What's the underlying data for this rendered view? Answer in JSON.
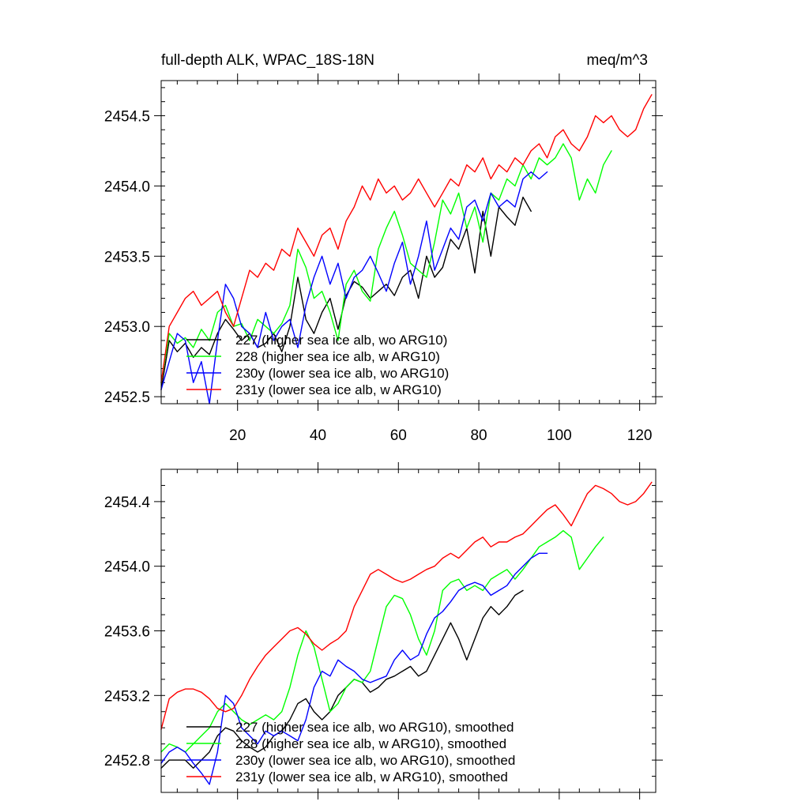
{
  "chart_data": [
    {
      "type": "line",
      "title": "full-depth ALK, WPAC_18S-18N",
      "units": "meq/m^3",
      "xlim": [
        1,
        124
      ],
      "ylim": [
        2452.45,
        2454.75
      ],
      "xticks": [
        20,
        40,
        60,
        80,
        100,
        120
      ],
      "yticks": [
        2452.5,
        2453.0,
        2453.5,
        2454.0,
        2454.5
      ],
      "yminor": 0.1,
      "show_x_tick_labels": true,
      "grid": false,
      "legend": "bottom-left",
      "series": [
        {
          "name": "227 (higher sea ice alb, wo ARG10)",
          "color": "#000000",
          "x": [
            1,
            3,
            5,
            7,
            9,
            11,
            13,
            15,
            17,
            19,
            21,
            23,
            25,
            27,
            29,
            31,
            33,
            35,
            37,
            39,
            41,
            43,
            45,
            47,
            49,
            51,
            53,
            55,
            57,
            59,
            61,
            63,
            65,
            67,
            69,
            71,
            73,
            75,
            77,
            79,
            81,
            83,
            85,
            87,
            89,
            91,
            93
          ],
          "y": [
            2452.55,
            2452.9,
            2452.82,
            2452.88,
            2452.78,
            2452.85,
            2452.8,
            2452.95,
            2453.05,
            2452.98,
            2452.9,
            2452.95,
            2452.85,
            2452.88,
            2452.95,
            2452.82,
            2453.0,
            2453.35,
            2453.05,
            2452.95,
            2453.1,
            2453.2,
            2452.98,
            2453.22,
            2453.32,
            2453.28,
            2453.2,
            2453.25,
            2453.3,
            2453.22,
            2453.35,
            2453.4,
            2453.2,
            2453.5,
            2453.35,
            2453.42,
            2453.62,
            2453.55,
            2453.7,
            2453.38,
            2453.82,
            2453.5,
            2453.85,
            2453.78,
            2453.72,
            2453.92,
            2453.82
          ]
        },
        {
          "name": "228 (higher sea ice alb, w ARG10)",
          "color": "#00ff00",
          "x": [
            1,
            3,
            5,
            7,
            9,
            11,
            13,
            15,
            17,
            19,
            21,
            23,
            25,
            27,
            29,
            31,
            33,
            35,
            37,
            39,
            41,
            43,
            45,
            47,
            49,
            51,
            53,
            55,
            57,
            59,
            61,
            63,
            65,
            67,
            69,
            71,
            73,
            75,
            77,
            79,
            81,
            83,
            85,
            87,
            89,
            91,
            93,
            95,
            97,
            99,
            101,
            103,
            105,
            107,
            109,
            111,
            113
          ],
          "y": [
            2452.6,
            2452.95,
            2452.88,
            2452.92,
            2452.85,
            2452.98,
            2452.9,
            2453.1,
            2453.15,
            2453.0,
            2453.02,
            2452.9,
            2453.05,
            2453.0,
            2452.95,
            2453.02,
            2453.15,
            2453.55,
            2453.42,
            2453.2,
            2453.25,
            2453.1,
            2452.9,
            2453.3,
            2453.4,
            2453.25,
            2453.18,
            2453.55,
            2453.7,
            2453.82,
            2453.65,
            2453.45,
            2453.4,
            2453.35,
            2453.6,
            2453.9,
            2453.8,
            2453.95,
            2453.7,
            2453.85,
            2453.6,
            2453.95,
            2453.9,
            2454.05,
            2454.0,
            2454.15,
            2454.05,
            2454.2,
            2454.15,
            2454.2,
            2454.3,
            2454.2,
            2453.9,
            2454.05,
            2453.95,
            2454.15,
            2454.25
          ]
        },
        {
          "name": "230y (lower sea ice alb, wo ARG10)",
          "color": "#0000ff",
          "x": [
            1,
            3,
            5,
            7,
            9,
            11,
            13,
            15,
            17,
            19,
            21,
            23,
            25,
            27,
            29,
            31,
            33,
            35,
            37,
            39,
            41,
            43,
            45,
            47,
            49,
            51,
            53,
            55,
            57,
            59,
            61,
            63,
            65,
            67,
            69,
            71,
            73,
            75,
            77,
            79,
            81,
            83,
            85,
            87,
            89,
            91,
            93,
            95,
            97
          ],
          "y": [
            2452.55,
            2452.75,
            2452.95,
            2452.9,
            2452.6,
            2452.75,
            2452.45,
            2452.9,
            2453.3,
            2453.2,
            2453.0,
            2452.95,
            2452.85,
            2453.1,
            2452.9,
            2453.0,
            2453.05,
            2452.85,
            2453.15,
            2453.35,
            2453.5,
            2453.3,
            2453.45,
            2453.2,
            2453.35,
            2453.4,
            2453.5,
            2453.38,
            2453.25,
            2453.45,
            2453.6,
            2453.3,
            2453.5,
            2453.75,
            2453.4,
            2453.55,
            2453.7,
            2453.62,
            2453.85,
            2453.9,
            2453.75,
            2453.95,
            2453.85,
            2453.9,
            2453.85,
            2454.05,
            2454.1,
            2454.05,
            2454.1
          ]
        },
        {
          "name": "231y (lower sea ice alb, w ARG10)",
          "color": "#ff0000",
          "x": [
            1,
            3,
            5,
            7,
            9,
            11,
            13,
            15,
            17,
            19,
            21,
            23,
            25,
            27,
            29,
            31,
            33,
            35,
            37,
            39,
            41,
            43,
            45,
            47,
            49,
            51,
            53,
            55,
            57,
            59,
            61,
            63,
            65,
            67,
            69,
            71,
            73,
            75,
            77,
            79,
            81,
            83,
            85,
            87,
            89,
            91,
            93,
            95,
            97,
            99,
            101,
            103,
            105,
            107,
            109,
            111,
            113,
            115,
            117,
            119,
            121,
            123
          ],
          "y": [
            2452.6,
            2453.0,
            2453.1,
            2453.2,
            2453.25,
            2453.15,
            2453.2,
            2453.25,
            2453.1,
            2453.0,
            2453.2,
            2453.4,
            2453.35,
            2453.45,
            2453.4,
            2453.55,
            2453.5,
            2453.7,
            2453.6,
            2453.5,
            2453.65,
            2453.7,
            2453.55,
            2453.75,
            2453.85,
            2454.0,
            2453.9,
            2454.05,
            2453.95,
            2454.0,
            2453.9,
            2453.95,
            2454.05,
            2453.95,
            2453.85,
            2453.95,
            2454.05,
            2454.0,
            2454.15,
            2454.1,
            2454.2,
            2454.05,
            2454.15,
            2454.1,
            2454.2,
            2454.15,
            2454.25,
            2454.3,
            2454.2,
            2454.35,
            2454.4,
            2454.3,
            2454.25,
            2454.35,
            2454.5,
            2454.45,
            2454.5,
            2454.4,
            2454.35,
            2454.4,
            2454.55,
            2454.65
          ]
        }
      ]
    },
    {
      "type": "line",
      "title": "",
      "units": "",
      "xlim": [
        1,
        124
      ],
      "ylim": [
        2452.6,
        2454.6
      ],
      "xticks": [
        20,
        40,
        60,
        80,
        100,
        120
      ],
      "yticks": [
        2452.8,
        2453.2,
        2453.6,
        2454.0,
        2454.4
      ],
      "yminor": 0.1,
      "show_x_tick_labels": false,
      "grid": false,
      "legend": "bottom-left",
      "series": [
        {
          "name": "227 (higher sea ice alb, wo ARG10), smoothed",
          "color": "#000000",
          "x": [
            1,
            3,
            5,
            7,
            9,
            11,
            13,
            15,
            17,
            19,
            21,
            23,
            25,
            27,
            29,
            31,
            33,
            35,
            37,
            39,
            41,
            43,
            45,
            47,
            49,
            51,
            53,
            55,
            57,
            59,
            61,
            63,
            65,
            67,
            69,
            71,
            73,
            75,
            77,
            79,
            81,
            83,
            85,
            87,
            89,
            91
          ],
          "y": [
            2452.75,
            2452.8,
            2452.8,
            2452.8,
            2452.75,
            2452.8,
            2452.85,
            2452.95,
            2453.0,
            2452.98,
            2452.92,
            2452.88,
            2452.85,
            2452.88,
            2452.95,
            2452.98,
            2453.05,
            2453.15,
            2453.18,
            2453.1,
            2453.05,
            2453.1,
            2453.2,
            2453.25,
            2453.3,
            2453.28,
            2453.22,
            2453.25,
            2453.3,
            2453.32,
            2453.35,
            2453.38,
            2453.32,
            2453.35,
            2453.45,
            2453.55,
            2453.65,
            2453.55,
            2453.42,
            2453.55,
            2453.68,
            2453.75,
            2453.7,
            2453.75,
            2453.82,
            2453.85
          ]
        },
        {
          "name": "228 (higher sea ice alb, w ARG10), smoothed",
          "color": "#00ff00",
          "x": [
            1,
            3,
            5,
            7,
            9,
            11,
            13,
            15,
            17,
            19,
            21,
            23,
            25,
            27,
            29,
            31,
            33,
            35,
            37,
            39,
            41,
            43,
            45,
            47,
            49,
            51,
            53,
            55,
            57,
            59,
            61,
            63,
            65,
            67,
            69,
            71,
            73,
            75,
            77,
            79,
            81,
            83,
            85,
            87,
            89,
            91,
            93,
            95,
            97,
            99,
            101,
            103,
            105,
            107,
            109,
            111
          ],
          "y": [
            2452.85,
            2452.9,
            2452.88,
            2452.85,
            2452.9,
            2452.95,
            2453.0,
            2453.1,
            2453.15,
            2453.1,
            2453.05,
            2453.02,
            2453.05,
            2453.08,
            2453.05,
            2453.1,
            2453.25,
            2453.45,
            2453.6,
            2453.5,
            2453.3,
            2453.1,
            2453.15,
            2453.25,
            2453.3,
            2453.28,
            2453.35,
            2453.55,
            2453.75,
            2453.82,
            2453.8,
            2453.7,
            2453.55,
            2453.45,
            2453.6,
            2453.85,
            2453.9,
            2453.92,
            2453.85,
            2453.88,
            2453.85,
            2453.92,
            2453.95,
            2453.98,
            2453.92,
            2453.98,
            2454.05,
            2454.12,
            2454.15,
            2454.18,
            2454.22,
            2454.18,
            2453.98,
            2454.05,
            2454.12,
            2454.18
          ]
        },
        {
          "name": "230y (lower sea ice alb, wo ARG10), smoothed",
          "color": "#0000ff",
          "x": [
            1,
            3,
            5,
            7,
            9,
            11,
            13,
            15,
            17,
            19,
            21,
            23,
            25,
            27,
            29,
            31,
            33,
            35,
            37,
            39,
            41,
            43,
            45,
            47,
            49,
            51,
            53,
            55,
            57,
            59,
            61,
            63,
            65,
            67,
            69,
            71,
            73,
            75,
            77,
            79,
            81,
            83,
            85,
            87,
            89,
            91,
            93,
            95,
            97
          ],
          "y": [
            2452.78,
            2452.85,
            2452.88,
            2452.85,
            2452.78,
            2452.72,
            2452.65,
            2452.85,
            2453.2,
            2453.15,
            2453.0,
            2452.95,
            2452.9,
            2452.98,
            2452.95,
            2452.98,
            2452.95,
            2452.92,
            2453.05,
            2453.25,
            2453.35,
            2453.32,
            2453.42,
            2453.38,
            2453.35,
            2453.3,
            2453.28,
            2453.3,
            2453.32,
            2453.42,
            2453.48,
            2453.42,
            2453.45,
            2453.58,
            2453.68,
            2453.72,
            2453.78,
            2453.85,
            2453.88,
            2453.9,
            2453.88,
            2453.82,
            2453.85,
            2453.88,
            2453.95,
            2454.0,
            2454.05,
            2454.08,
            2454.08
          ]
        },
        {
          "name": "231y (lower sea ice alb, w ARG10), smoothed",
          "color": "#ff0000",
          "x": [
            1,
            3,
            5,
            7,
            9,
            11,
            13,
            15,
            17,
            19,
            21,
            23,
            25,
            27,
            29,
            31,
            33,
            35,
            37,
            39,
            41,
            43,
            45,
            47,
            49,
            51,
            53,
            55,
            57,
            59,
            61,
            63,
            65,
            67,
            69,
            71,
            73,
            75,
            77,
            79,
            81,
            83,
            85,
            87,
            89,
            91,
            93,
            95,
            97,
            99,
            101,
            103,
            105,
            107,
            109,
            111,
            113,
            115,
            117,
            119,
            121,
            123
          ],
          "y": [
            2452.99,
            2453.18,
            2453.22,
            2453.24,
            2453.24,
            2453.22,
            2453.18,
            2453.12,
            2453.1,
            2453.12,
            2453.2,
            2453.3,
            2453.38,
            2453.45,
            2453.5,
            2453.55,
            2453.6,
            2453.62,
            2453.58,
            2453.52,
            2453.48,
            2453.52,
            2453.55,
            2453.6,
            2453.75,
            2453.85,
            2453.95,
            2453.98,
            2453.95,
            2453.92,
            2453.9,
            2453.92,
            2453.95,
            2453.98,
            2454.0,
            2454.05,
            2454.08,
            2454.05,
            2454.1,
            2454.15,
            2454.18,
            2454.12,
            2454.15,
            2454.15,
            2454.18,
            2454.2,
            2454.25,
            2454.3,
            2454.35,
            2454.38,
            2454.32,
            2454.25,
            2454.35,
            2454.45,
            2454.5,
            2454.48,
            2454.45,
            2454.4,
            2454.38,
            2454.4,
            2454.45,
            2454.52
          ]
        }
      ]
    }
  ]
}
